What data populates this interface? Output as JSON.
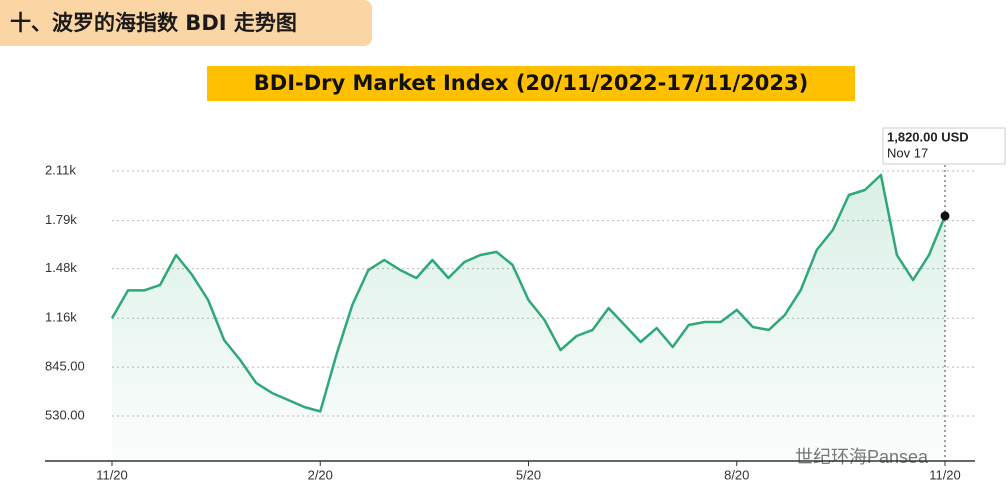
{
  "header": {
    "title": "十、波罗的海指数 BDI 走势图"
  },
  "chart_data": {
    "type": "line",
    "title": "BDI-Dry Market Index (20/11/2022-17/11/2023)",
    "categories": [
      "11/20",
      null,
      null,
      null,
      null,
      null,
      null,
      null,
      null,
      null,
      null,
      null,
      null,
      "2/20",
      null,
      null,
      null,
      null,
      null,
      null,
      null,
      null,
      null,
      null,
      null,
      null,
      "5/20",
      null,
      null,
      null,
      null,
      null,
      null,
      null,
      null,
      null,
      null,
      null,
      null,
      "8/20",
      null,
      null,
      null,
      null,
      null,
      null,
      null,
      null,
      null,
      null,
      null,
      null,
      "11/20"
    ],
    "series": [
      {
        "name": "BDI",
        "color": "#2fa877",
        "values": [
          1160,
          1340,
          1340,
          1375,
          1568,
          1440,
          1278,
          1020,
          891,
          743,
          678,
          633,
          588,
          560,
          923,
          1246,
          1471,
          1536,
          1471,
          1420,
          1536,
          1420,
          1523,
          1568,
          1588,
          1504,
          1278,
          1149,
          955,
          1046,
          1085,
          1226,
          1117,
          1007,
          1097,
          975,
          1117,
          1136,
          1136,
          1214,
          1104,
          1085,
          1181,
          1343,
          1601,
          1730,
          1955,
          1987,
          2084,
          1568,
          1407,
          1568,
          1820
        ]
      }
    ],
    "ylim": [
      240,
      2245
    ],
    "yticks": [
      {
        "value": 530,
        "label": "530.00"
      },
      {
        "value": 845,
        "label": "845.00"
      },
      {
        "value": 1160,
        "label": "1.16k"
      },
      {
        "value": 1480,
        "label": "1.48k"
      },
      {
        "value": 1790,
        "label": "1.79k"
      },
      {
        "value": 2110,
        "label": "2.11k"
      }
    ],
    "grid": true,
    "annotations": {
      "last_value": "1,820.00 USD",
      "last_date": "Nov 17"
    },
    "watermark": "世纪环海Pansea"
  }
}
